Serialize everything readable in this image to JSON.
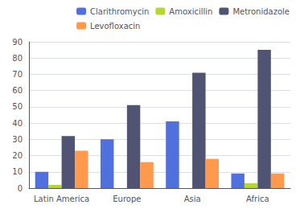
{
  "chart_data": {
    "type": "bar",
    "categories": [
      "Latin America",
      "Europe",
      "Asia",
      "Africa"
    ],
    "series": [
      {
        "name": "Clarithromycin",
        "values": [
          10,
          30,
          41,
          9
        ]
      },
      {
        "name": "Amoxicillin",
        "values": [
          2,
          0,
          0,
          3
        ]
      },
      {
        "name": "Metronidazole",
        "values": [
          32,
          51,
          71,
          85
        ]
      },
      {
        "name": "Levofloxacin",
        "values": [
          23,
          16,
          18,
          9
        ]
      }
    ],
    "ylim": [
      0,
      90
    ],
    "yticks": [
      0,
      10,
      20,
      30,
      40,
      50,
      60,
      70,
      80,
      90
    ],
    "grid": true,
    "legend": "upper right"
  }
}
